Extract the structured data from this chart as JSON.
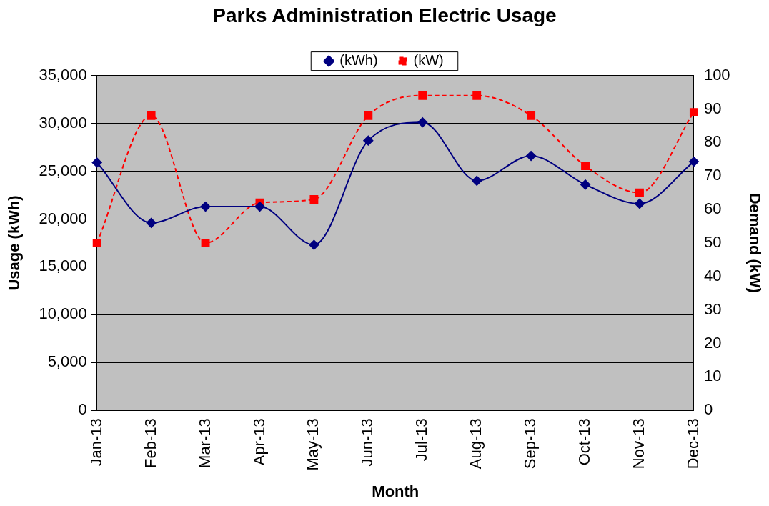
{
  "chart_data": {
    "type": "line",
    "title": "Parks Administration Electric Usage",
    "xlabel": "Month",
    "ylabel": "Usage (kWh)",
    "y2label": "Demand (kW)",
    "categories": [
      "Jan-13",
      "Feb-13",
      "Mar-13",
      "Apr-13",
      "May-13",
      "Jun-13",
      "Jul-13",
      "Aug-13",
      "Sep-13",
      "Oct-13",
      "Nov-13",
      "Dec-13"
    ],
    "series": [
      {
        "name": "(kWh)",
        "color": "#000080",
        "marker": "diamond",
        "line_style": "solid",
        "values": [
          25900,
          19600,
          21300,
          21300,
          17300,
          28200,
          30100,
          24000,
          26600,
          23600,
          21600,
          26000
        ]
      },
      {
        "name": "(kW)",
        "color": "#ff0000",
        "marker": "square",
        "line_style": "dashed",
        "axis": "y2",
        "values": [
          50,
          88,
          50,
          62,
          63,
          88,
          94,
          94,
          88,
          73,
          65,
          89
        ]
      }
    ],
    "ylim": [
      0,
      35000
    ],
    "yticks": [
      0,
      {
        "value": 5000,
        "label": "5,000"
      },
      {
        "value": 10000,
        "label": "10,000"
      },
      {
        "value": 15000,
        "label": "15,000"
      },
      {
        "value": 20000,
        "label": "20,000"
      },
      {
        "value": 25000,
        "label": "25,000"
      },
      {
        "value": 30000,
        "label": "30,000"
      },
      {
        "value": 35000,
        "label": "35,000"
      }
    ],
    "y2lim": [
      0,
      100
    ],
    "y2ticks": [
      0,
      10,
      20,
      30,
      40,
      50,
      60,
      70,
      80,
      90,
      100
    ],
    "grid": "y",
    "legend": "top"
  }
}
